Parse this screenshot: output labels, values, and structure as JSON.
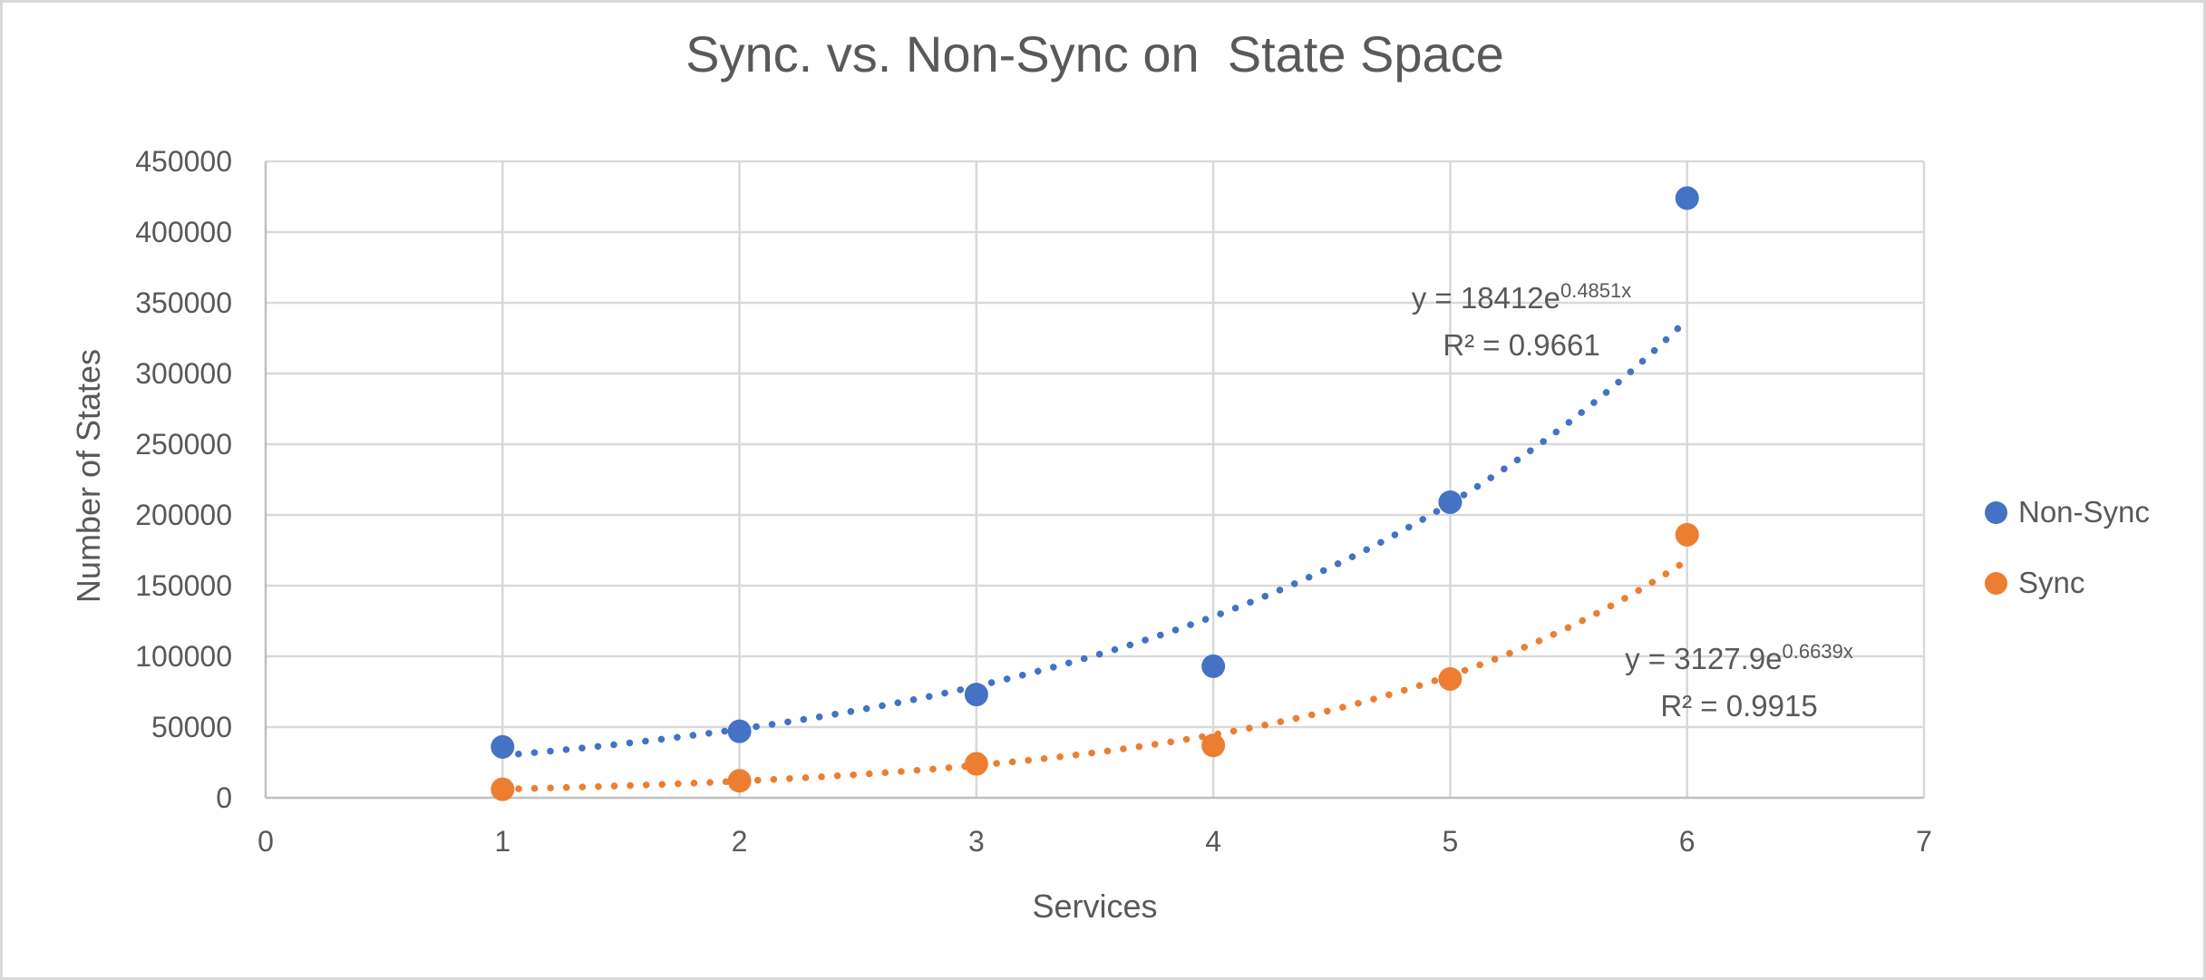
{
  "window": {
    "background": "#ffffff",
    "border_color": "#d8d8d8",
    "text_color": "#595959",
    "gridline_color": "#d9d9d9",
    "axis_line_color": "#bfbfbf"
  },
  "chart_data": {
    "type": "scatter",
    "title": "Sync. vs. Non-Sync on  State Space",
    "xlabel": "Services",
    "ylabel": "Number of States",
    "xlim": [
      0,
      7
    ],
    "ylim": [
      0,
      450000
    ],
    "x_ticks": [
      0,
      1,
      2,
      3,
      4,
      5,
      6,
      7
    ],
    "y_ticks": [
      0,
      50000,
      100000,
      150000,
      200000,
      250000,
      300000,
      350000,
      400000,
      450000
    ],
    "grid": true,
    "legend_position": "right",
    "x": [
      1,
      2,
      3,
      4,
      5,
      6
    ],
    "series": [
      {
        "name": "Non-Sync",
        "color": "#4472C4",
        "values": [
          36000,
          47000,
          73000,
          93000,
          209000,
          424000
        ],
        "trendline": {
          "type": "exponential",
          "a": 18412,
          "b": 0.4851,
          "range": [
            1,
            6
          ],
          "equation_prefix": "y = 18412e",
          "equation_exponent": "0.4851x",
          "r_squared_label": "R² = 0.9661"
        }
      },
      {
        "name": "Sync",
        "color": "#ED7D31",
        "values": [
          6000,
          12000,
          24000,
          37000,
          84000,
          186000
        ],
        "trendline": {
          "type": "exponential",
          "a": 3127.9,
          "b": 0.6639,
          "range": [
            1,
            6
          ],
          "equation_prefix": "y = 3127.9e",
          "equation_exponent": "0.6639x",
          "r_squared_label": "R² = 0.9915"
        }
      }
    ]
  }
}
